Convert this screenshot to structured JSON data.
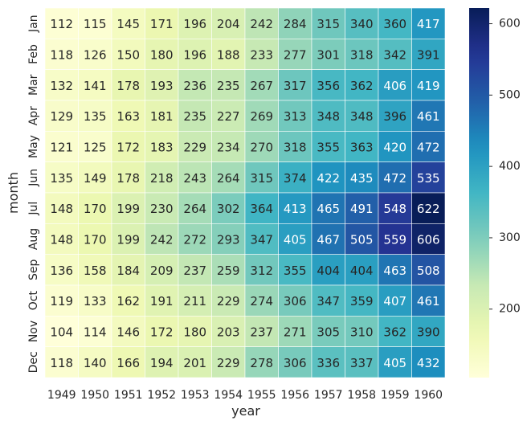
{
  "chart_data": {
    "type": "heatmap",
    "title": "",
    "xlabel": "year",
    "ylabel": "month",
    "x_categories": [
      "1949",
      "1950",
      "1951",
      "1952",
      "1953",
      "1954",
      "1955",
      "1956",
      "1957",
      "1958",
      "1959",
      "1960"
    ],
    "y_categories": [
      "Jan",
      "Feb",
      "Mar",
      "Apr",
      "May",
      "Jun",
      "Jul",
      "Aug",
      "Sep",
      "Oct",
      "Nov",
      "Dec"
    ],
    "values": [
      [
        112,
        115,
        145,
        171,
        196,
        204,
        242,
        284,
        315,
        340,
        360,
        417
      ],
      [
        118,
        126,
        150,
        180,
        196,
        188,
        233,
        277,
        301,
        318,
        342,
        391
      ],
      [
        132,
        141,
        178,
        193,
        236,
        235,
        267,
        317,
        356,
        362,
        406,
        419
      ],
      [
        129,
        135,
        163,
        181,
        235,
        227,
        269,
        313,
        348,
        348,
        396,
        461
      ],
      [
        121,
        125,
        172,
        183,
        229,
        234,
        270,
        318,
        355,
        363,
        420,
        472
      ],
      [
        135,
        149,
        178,
        218,
        243,
        264,
        315,
        374,
        422,
        435,
        472,
        535
      ],
      [
        148,
        170,
        199,
        230,
        264,
        302,
        364,
        413,
        465,
        491,
        548,
        622
      ],
      [
        148,
        170,
        199,
        242,
        272,
        293,
        347,
        405,
        467,
        505,
        559,
        606
      ],
      [
        136,
        158,
        184,
        209,
        237,
        259,
        312,
        355,
        404,
        404,
        463,
        508
      ],
      [
        119,
        133,
        162,
        191,
        211,
        229,
        274,
        306,
        347,
        359,
        407,
        461
      ],
      [
        104,
        114,
        146,
        172,
        180,
        203,
        237,
        271,
        305,
        310,
        362,
        390
      ],
      [
        118,
        140,
        166,
        194,
        201,
        229,
        278,
        306,
        336,
        337,
        405,
        432
      ]
    ],
    "colorscale": "YlGnBu",
    "colorbar": {
      "vmin": 104,
      "vmax": 622,
      "ticks": [
        "200",
        "300",
        "400",
        "500",
        "600"
      ]
    },
    "annotations": true
  }
}
